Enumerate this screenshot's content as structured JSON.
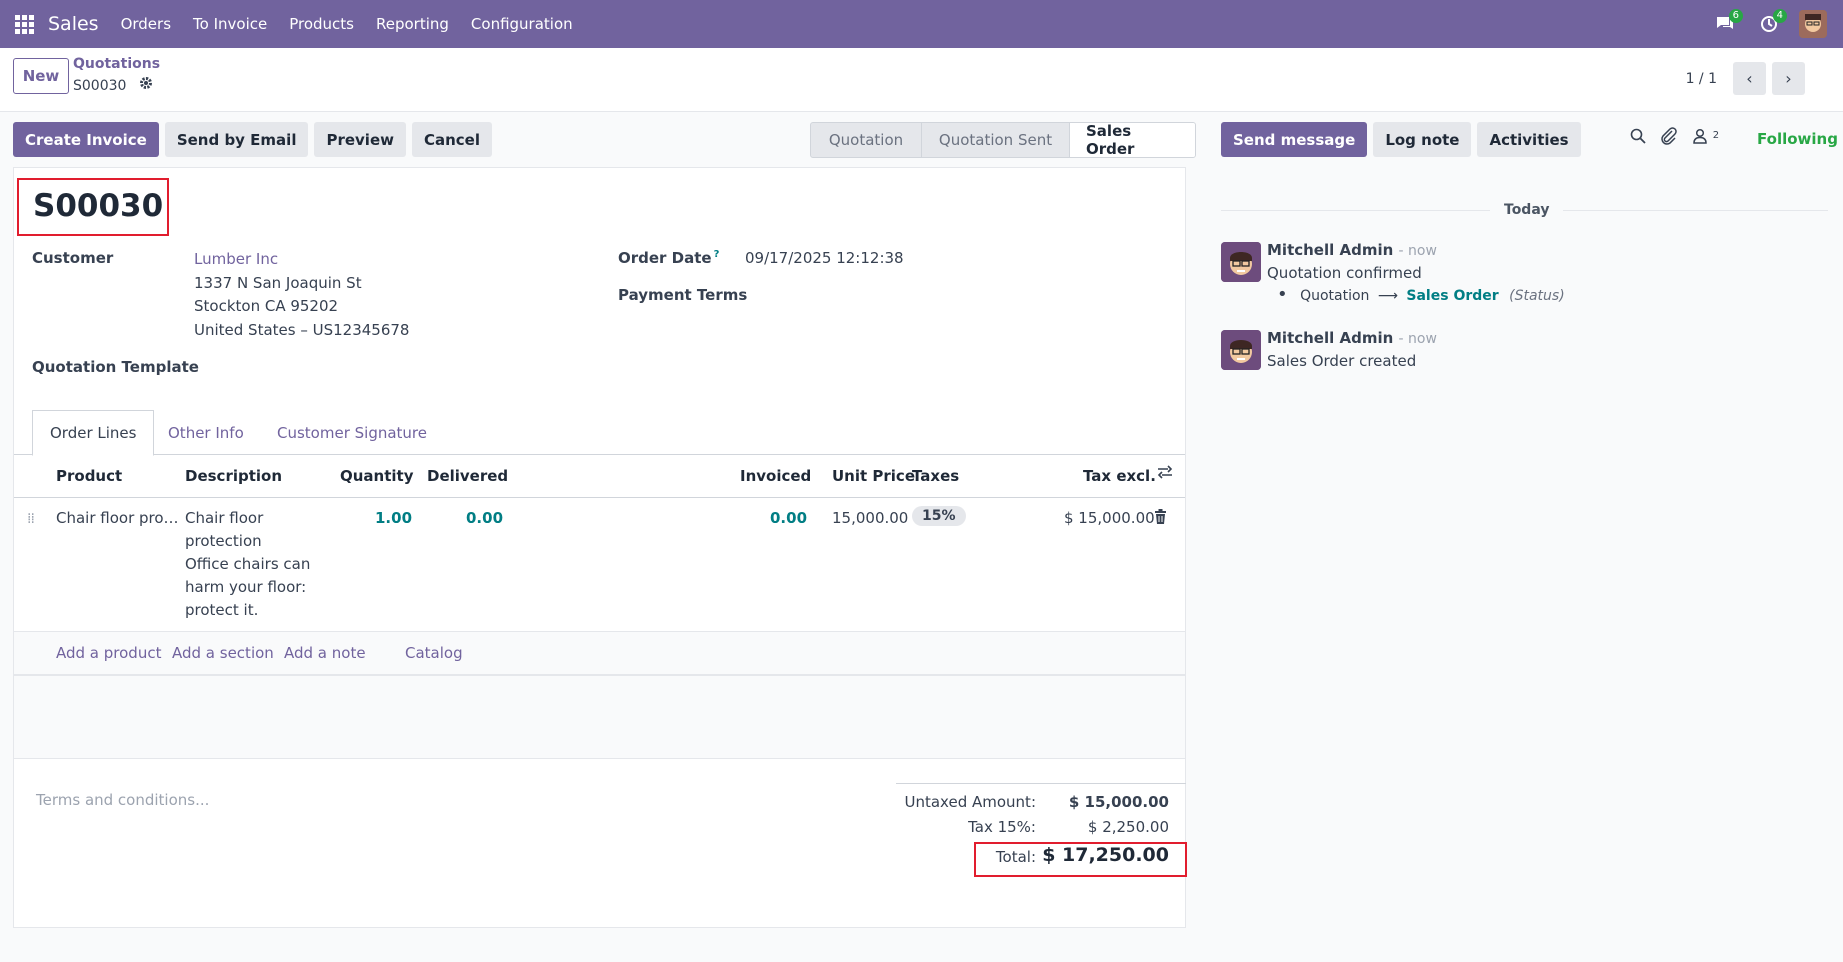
{
  "topbar": {
    "app_name": "Sales",
    "menu": [
      "Orders",
      "To Invoice",
      "Products",
      "Reporting",
      "Configuration"
    ],
    "messages_badge": "6",
    "activities_badge": "4"
  },
  "control": {
    "new_label": "New",
    "breadcrumb_parent": "Quotations",
    "breadcrumb_current": "S00030",
    "pager": "1 / 1"
  },
  "actions": {
    "create_invoice": "Create Invoice",
    "send_by_email": "Send by Email",
    "preview": "Preview",
    "cancel": "Cancel"
  },
  "status": {
    "stages": [
      "Quotation",
      "Quotation Sent",
      "Sales Order"
    ],
    "active": "Sales Order"
  },
  "form": {
    "name": "S00030",
    "customer_label": "Customer",
    "customer_name": "Lumber Inc",
    "address_1": "1337 N San Joaquin St",
    "address_2": "Stockton CA 95202",
    "address_3": "United States – US12345678",
    "template_label": "Quotation Template",
    "order_date_label": "Order Date",
    "order_date_help": "?",
    "order_date": "09/17/2025 12:12:38",
    "payment_terms_label": "Payment Terms"
  },
  "tabs": [
    "Order Lines",
    "Other Info",
    "Customer Signature"
  ],
  "table": {
    "headers": {
      "product": "Product",
      "description": "Description",
      "quantity": "Quantity",
      "delivered": "Delivered",
      "invoiced": "Invoiced",
      "unit_price": "Unit Price",
      "taxes": "Taxes",
      "tax_excl": "Tax excl."
    },
    "line": {
      "product": "Chair floor pro…",
      "description": [
        "Chair floor",
        "protection",
        "Office chairs can",
        "harm your floor:",
        "protect it."
      ],
      "quantity": "1.00",
      "delivered": "0.00",
      "invoiced": "0.00",
      "unit_price": "15,000.00",
      "tax": "15%",
      "subtotal": "$ 15,000.00"
    },
    "add_links": {
      "product": "Add a product",
      "section": "Add a section",
      "note": "Add a note",
      "catalog": "Catalog"
    }
  },
  "terms_placeholder": "Terms and conditions...",
  "totals": {
    "untaxed_label": "Untaxed Amount:",
    "untaxed_value": "$ 15,000.00",
    "tax_label": "Tax 15%:",
    "tax_value": "$ 2,250.00",
    "total_label": "Total:",
    "total_value": "$ 17,250.00"
  },
  "chatter": {
    "send_message": "Send message",
    "log_note": "Log note",
    "activities": "Activities",
    "followers_count": "2",
    "following": "Following",
    "today": "Today",
    "messages": [
      {
        "author": "Mitchell Admin",
        "date": "- now",
        "body": "Quotation confirmed",
        "tracking_old": "Quotation",
        "tracking_new": "Sales Order",
        "tracking_field": "(Status)"
      },
      {
        "author": "Mitchell Admin",
        "date": "- now",
        "body": "Sales Order created"
      }
    ]
  }
}
